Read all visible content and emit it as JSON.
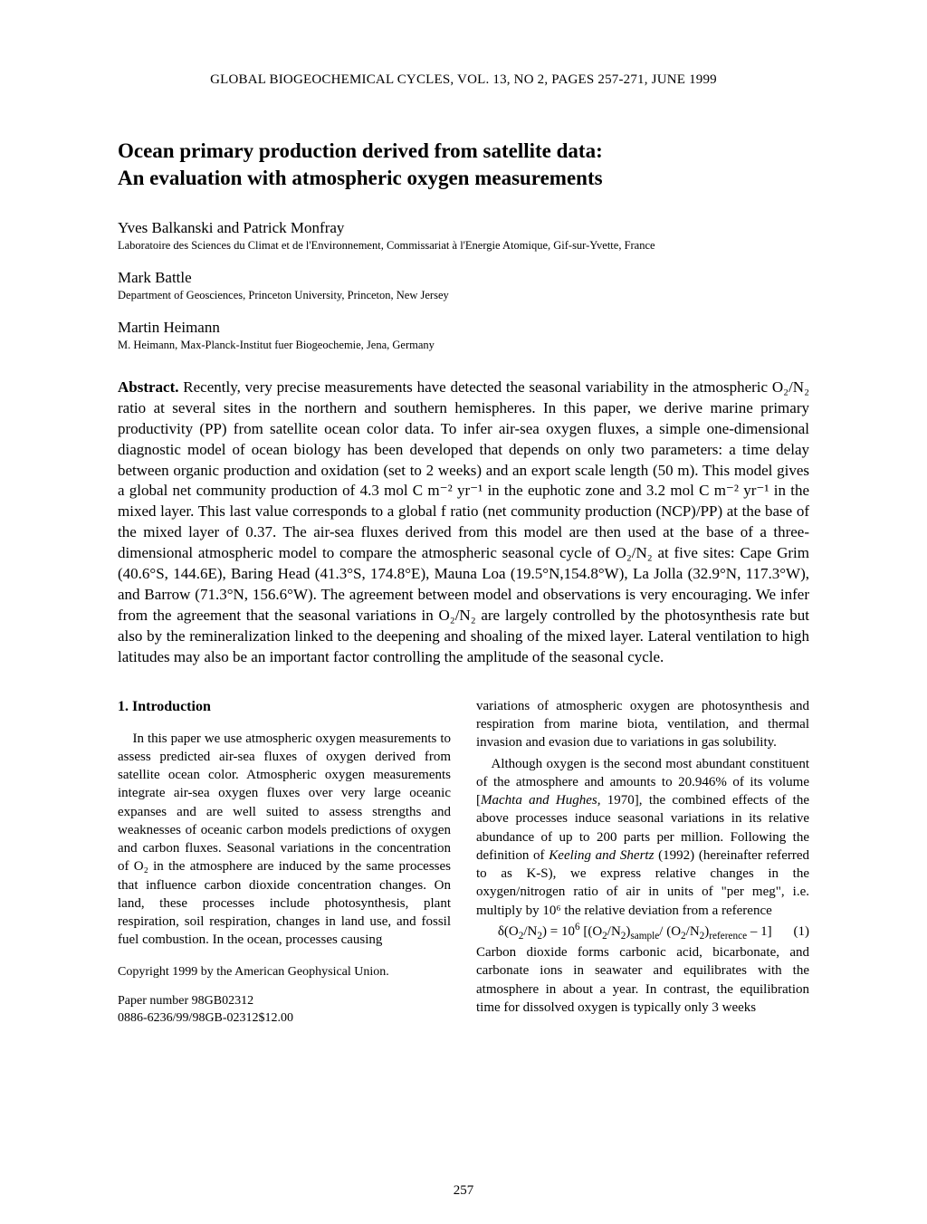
{
  "journal_header": "GLOBAL BIOGEOCHEMICAL CYCLES, VOL. 13, NO 2, PAGES 257-271, JUNE 1999",
  "title_line1": "Ocean primary production derived from satellite data:",
  "title_line2": "An evaluation with atmospheric oxygen measurements",
  "authors": [
    {
      "name": "Yves Balkanski and Patrick Monfray",
      "affil": "Laboratoire des Sciences du Climat et de l'Environnement, Commissariat à l'Energie Atomique, Gif-sur-Yvette, France"
    },
    {
      "name": "Mark Battle",
      "affil": "Department of Geosciences, Princeton University, Princeton, New Jersey"
    },
    {
      "name": "Martin Heimann",
      "affil": "M. Heimann, Max-Planck-Institut fuer Biogeochemie, Jena, Germany"
    }
  ],
  "abstract_label": "Abstract.",
  "abstract_text": " Recently, very precise measurements have detected the seasonal variability in the atmospheric O₂/N₂ ratio at several sites in the northern and southern hemispheres. In this paper, we derive marine primary productivity (PP) from satellite ocean color data. To infer air-sea oxygen fluxes, a simple one-dimensional diagnostic model of ocean biology has been developed that depends on only two parameters: a time delay between organic production and oxidation (set to 2 weeks) and an export scale length (50 m). This model gives a global net community production of 4.3 mol C m⁻² yr⁻¹ in the euphotic zone and 3.2 mol C m⁻² yr⁻¹ in the mixed layer. This last value corresponds to a global f ratio (net community production (NCP)/PP) at the base of the mixed layer of 0.37. The air-sea fluxes derived from this model are then used at the base of a three-dimensional atmospheric model to compare the atmospheric seasonal cycle of O₂/N₂ at five sites: Cape Grim (40.6°S, 144.6E), Baring Head (41.3°S, 174.8°E), Mauna Loa (19.5°N,154.8°W), La Jolla (32.9°N, 117.3°W), and Barrow (71.3°N, 156.6°W). The agreement between model and observations is very encouraging. We infer from the agreement that the seasonal variations in O₂/N₂ are largely controlled by the photosynthesis rate but also by the remineralization linked to the deepening and shoaling of the mixed layer. Lateral ventilation to high latitudes may also be an important factor controlling the amplitude of the seasonal cycle.",
  "section1_heading": "1. Introduction",
  "col1_p1": "In this paper we use atmospheric oxygen measurements to assess predicted air-sea fluxes of oxygen derived from satellite ocean color. Atmospheric oxygen measurements integrate air-sea oxygen fluxes over very large oceanic expanses and are well suited to assess strengths and weaknesses of oceanic carbon models predictions of oxygen and carbon fluxes. Seasonal variations in the concentration of O₂ in the atmosphere are induced by the same processes that influence carbon dioxide concentration changes. On land, these processes include photosynthesis, plant respiration, soil respiration, changes in land use, and fossil fuel combustion. In the ocean, processes causing",
  "copyright": "Copyright 1999 by the American Geophysical Union.",
  "paper_number_1": "Paper number 98GB02312",
  "paper_number_2": "0886-6236/99/98GB-02312$12.00",
  "col2_p1": "variations of atmospheric oxygen are photosynthesis and respiration from marine biota, ventilation, and thermal invasion and evasion due to variations in gas solubility.",
  "col2_p2a": "Although oxygen is the second most abundant constituent of the atmosphere and amounts to 20.946% of its volume [",
  "col2_p2_ref1": "Machta and Hughes,",
  "col2_p2b": " 1970], the combined effects of the above processes induce seasonal variations in its relative abundance of up to 200 parts per million. Following the definition of ",
  "col2_p2_ref2": "Keeling and Shertz",
  "col2_p2c": " (1992) (hereinafter referred to as K-S), we express relative changes in the oxygen/nitrogen ratio of air in units of \"per meg\", i.e. multiply by 10⁶ the relative deviation from a reference",
  "equation_1": "δ(O₂/N₂) = 10⁶ [(O₂/N₂)sample/ (O₂/N₂)reference – 1]",
  "equation_1_num": "(1)",
  "col2_p3": "Carbon dioxide forms carbonic acid, bicarbonate, and carbonate ions in seawater and equilibrates with the atmosphere in about a year. In contrast, the equilibration time for dissolved oxygen is typically only 3 weeks",
  "page_number": "257"
}
